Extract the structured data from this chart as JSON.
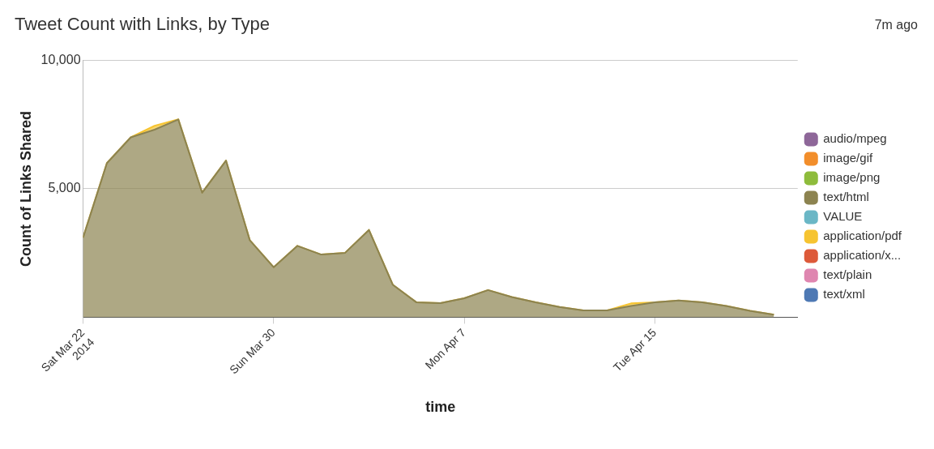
{
  "chart_data": {
    "type": "area",
    "stacked": true,
    "title": "Tweet Count with Links, by Type",
    "annotations": [
      "7m ago"
    ],
    "xlabel": "time",
    "ylabel": "Count of Links Shared",
    "x": [
      "2014-03-22",
      "2014-03-23",
      "2014-03-24",
      "2014-03-25",
      "2014-03-26",
      "2014-03-27",
      "2014-03-28",
      "2014-03-29",
      "2014-03-30",
      "2014-03-31",
      "2014-04-01",
      "2014-04-02",
      "2014-04-03",
      "2014-04-04",
      "2014-04-05",
      "2014-04-06",
      "2014-04-07",
      "2014-04-08",
      "2014-04-09",
      "2014-04-10",
      "2014-04-11",
      "2014-04-12",
      "2014-04-13",
      "2014-04-14",
      "2014-04-15",
      "2014-04-16",
      "2014-04-17",
      "2014-04-18",
      "2014-04-19",
      "2014-04-20"
    ],
    "xlim": [
      "2014-03-22",
      "2014-04-21"
    ],
    "xticks": [
      {
        "value": "2014-03-22",
        "label": "Sat Mar 22\n2014"
      },
      {
        "value": "2014-03-30",
        "label": "Sun Mar 30"
      },
      {
        "value": "2014-04-07",
        "label": "Mon Apr 7"
      },
      {
        "value": "2014-04-15",
        "label": "Tue Apr 15"
      }
    ],
    "ylim": [
      0,
      10000
    ],
    "yticks": [
      {
        "value": 5000,
        "label": "5,000"
      },
      {
        "value": 10000,
        "label": "10,000"
      }
    ],
    "grid": "y",
    "legend": "right",
    "series": [
      {
        "name": "audio/mpeg",
        "color": "#8e6799",
        "values": [
          null,
          null,
          null,
          null,
          null,
          null,
          null,
          null,
          null,
          null,
          null,
          null,
          null,
          null,
          null,
          null,
          null,
          null,
          null,
          null,
          null,
          null,
          null,
          null,
          null,
          null,
          null,
          null,
          null,
          null
        ]
      },
      {
        "name": "image/gif",
        "color": "#f28e2b",
        "values": [
          null,
          null,
          null,
          null,
          null,
          null,
          null,
          null,
          null,
          null,
          null,
          null,
          null,
          null,
          null,
          null,
          null,
          null,
          null,
          null,
          null,
          null,
          null,
          null,
          null,
          null,
          null,
          null,
          null,
          null
        ]
      },
      {
        "name": "image/png",
        "color": "#8ebc3c",
        "values": [
          null,
          null,
          null,
          null,
          null,
          null,
          null,
          null,
          null,
          null,
          null,
          null,
          null,
          null,
          null,
          null,
          null,
          null,
          null,
          null,
          null,
          null,
          null,
          null,
          null,
          null,
          null,
          null,
          null,
          null
        ]
      },
      {
        "name": "text/html",
        "color": "#8c8350",
        "values": [
          3100,
          6000,
          7000,
          7300,
          7700,
          4850,
          6100,
          3000,
          1950,
          2780,
          2440,
          2510,
          3400,
          1270,
          580,
          550,
          740,
          1060,
          790,
          580,
          400,
          270,
          270,
          440,
          580,
          650,
          580,
          440,
          250,
          100
        ]
      },
      {
        "name": "VALUE",
        "color": "#6bb7c6",
        "values": [
          null,
          null,
          null,
          null,
          null,
          null,
          null,
          null,
          null,
          null,
          null,
          null,
          null,
          null,
          null,
          null,
          null,
          null,
          null,
          null,
          null,
          null,
          null,
          null,
          null,
          null,
          null,
          null,
          null,
          null
        ]
      },
      {
        "name": "application/pdf",
        "color": "#f6c431",
        "values": [
          0,
          0,
          0,
          150,
          0,
          0,
          0,
          0,
          0,
          0,
          0,
          0,
          0,
          0,
          0,
          0,
          0,
          0,
          0,
          0,
          0,
          0,
          0,
          100,
          0,
          0,
          0,
          0,
          0,
          0
        ]
      },
      {
        "name": "application/x...",
        "color": "#dd5a3a",
        "values": [
          null,
          null,
          null,
          null,
          null,
          null,
          null,
          null,
          null,
          null,
          null,
          null,
          null,
          null,
          null,
          null,
          null,
          null,
          null,
          null,
          null,
          null,
          null,
          null,
          null,
          null,
          null,
          null,
          null,
          null
        ]
      },
      {
        "name": "text/plain",
        "color": "#df86b0",
        "values": [
          null,
          null,
          null,
          null,
          null,
          null,
          null,
          null,
          null,
          null,
          null,
          null,
          null,
          null,
          null,
          null,
          null,
          null,
          null,
          null,
          null,
          null,
          null,
          null,
          null,
          null,
          null,
          null,
          null,
          null
        ]
      },
      {
        "name": "text/xml",
        "color": "#4e79b4",
        "values": [
          null,
          null,
          null,
          null,
          null,
          null,
          null,
          null,
          null,
          null,
          null,
          null,
          null,
          null,
          null,
          null,
          null,
          null,
          null,
          null,
          null,
          null,
          null,
          null,
          null,
          null,
          null,
          null,
          null,
          null
        ]
      }
    ]
  }
}
